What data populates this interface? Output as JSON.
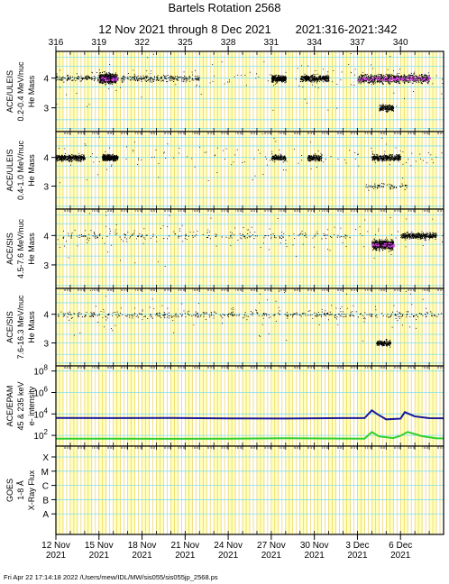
{
  "title": "Bartels Rotation 2568",
  "subtitle_dates": "12 Nov 2021 through 8 Dec 2021",
  "subtitle_doy": "2021:316-2021:342",
  "top_ticks": [
    "316",
    "319",
    "322",
    "325",
    "328",
    "331",
    "334",
    "337",
    "340"
  ],
  "bottom_ticks": [
    {
      "day": "12 Nov",
      "year": "2021"
    },
    {
      "day": "15 Nov",
      "year": "2021"
    },
    {
      "day": "18 Nov",
      "year": "2021"
    },
    {
      "day": "21 Nov",
      "year": "2021"
    },
    {
      "day": "24 Nov",
      "year": "2021"
    },
    {
      "day": "27 Nov",
      "year": "2021"
    },
    {
      "day": "30 Nov",
      "year": "2021"
    },
    {
      "day": "3 Dec",
      "year": "2021"
    },
    {
      "day": "6 Dec",
      "year": "2021"
    }
  ],
  "footer": "Fri Apr 22 17:14:18 2022    /Users/mew/IDL/MW/sis055/sis055jp_2568.ps",
  "colors": {
    "background_stripe": "#ffffc0",
    "vline": "#e8c840",
    "hline": "#80e0f0",
    "points": "#000000",
    "dense": "#d040e0",
    "e_high": "#1a1a9a",
    "e_low": "#30d030"
  },
  "chart_data": [
    {
      "type": "scatter",
      "instrument": "ACE/ULEIS",
      "ylabel": "He Mass",
      "energy": "0.2-0.4 MeV/nuc",
      "yticks": [
        "4",
        "3"
      ],
      "ylim": [
        2.2,
        4.9
      ],
      "xlim": [
        316,
        343
      ],
      "clusters": [
        {
          "x": [
            316.0,
            326.0
          ],
          "y": 4.0,
          "density": "high"
        },
        {
          "x": [
            319.0,
            320.2
          ],
          "y": 4.0,
          "density": "very high"
        },
        {
          "x": [
            331.0,
            332.0
          ],
          "y": 4.0,
          "density": "high"
        },
        {
          "x": [
            333.0,
            335.0
          ],
          "y": 4.0,
          "density": "high"
        },
        {
          "x": [
            337.0,
            342.0
          ],
          "y": 4.0,
          "density": "very high"
        },
        {
          "x": [
            338.5,
            339.5
          ],
          "y": 3.0,
          "density": "medium"
        }
      ]
    },
    {
      "type": "scatter",
      "instrument": "ACE/ULEIS",
      "ylabel": "He Mass",
      "energy": "0.4-1.0 MeV/nuc",
      "yticks": [
        "4",
        "3"
      ],
      "ylim": [
        2.2,
        4.9
      ],
      "xlim": [
        316,
        343
      ],
      "clusters": [
        {
          "x": [
            316.0,
            318.0
          ],
          "y": 4.0,
          "density": "high"
        },
        {
          "x": [
            319.2,
            320.3
          ],
          "y": 4.0,
          "density": "high"
        },
        {
          "x": [
            331.0,
            332.0
          ],
          "y": 4.0,
          "density": "medium"
        },
        {
          "x": [
            333.5,
            334.5
          ],
          "y": 4.0,
          "density": "medium"
        },
        {
          "x": [
            338.0,
            340.0
          ],
          "y": 4.0,
          "density": "high"
        },
        {
          "x": [
            337.5,
            340.5
          ],
          "y": 3.0,
          "density": "low"
        }
      ]
    },
    {
      "type": "scatter",
      "instrument": "ACE/SIS",
      "ylabel": "He Mass",
      "energy": "4.5-7.6 MeV/nuc",
      "yticks": [
        "4",
        "3"
      ],
      "ylim": [
        2.2,
        4.9
      ],
      "xlim": [
        316,
        343
      ],
      "clusters": [
        {
          "x": [
            316.0,
            336.5
          ],
          "y": 4.0,
          "density": "medium"
        },
        {
          "x": [
            338.0,
            339.5
          ],
          "y": 3.7,
          "density": "very high"
        },
        {
          "x": [
            340.0,
            342.5
          ],
          "y": 4.0,
          "density": "high"
        }
      ]
    },
    {
      "type": "scatter",
      "instrument": "ACE/SIS",
      "ylabel": "He Mass",
      "energy": "7.6-16.3 MeV/nuc",
      "yticks": [
        "4",
        "3"
      ],
      "ylim": [
        2.2,
        4.9
      ],
      "xlim": [
        316,
        343
      ],
      "clusters": [
        {
          "x": [
            316.0,
            343.0
          ],
          "y": 4.0,
          "density": "high"
        },
        {
          "x": [
            338.3,
            339.3
          ],
          "y": 3.0,
          "density": "medium"
        }
      ]
    },
    {
      "type": "line",
      "instrument": "ACE/EPAM",
      "ylabel": "e- intensity",
      "energy": "45 & 235 keV",
      "yscale": "log",
      "ylim": [
        10,
        300000000
      ],
      "yticks": [
        "10^8",
        "10^6",
        "10^4",
        "10^2"
      ],
      "xlim": [
        316,
        343
      ],
      "series": [
        {
          "color": "#1a1a9a",
          "x": [
            316,
            320,
            324,
            328,
            332,
            336,
            337.5,
            338,
            338.4,
            339,
            340,
            340.3,
            341,
            342,
            343
          ],
          "values": [
            4000,
            4000,
            4000,
            4000,
            4000,
            4000,
            4000,
            20000,
            9000,
            3000,
            3500,
            15000,
            6000,
            4000,
            4000
          ]
        },
        {
          "color": "#30d030",
          "x": [
            316,
            320,
            324,
            328,
            332,
            336,
            337.5,
            338,
            338.5,
            339.5,
            340,
            340.5,
            341.5,
            342.5,
            343
          ],
          "values": [
            50,
            50,
            50,
            50,
            50,
            50,
            50,
            200,
            80,
            60,
            100,
            200,
            80,
            50,
            50
          ]
        }
      ]
    },
    {
      "type": "line",
      "instrument": "GOES",
      "ylabel": "X-Ray Flux",
      "energy": "1-8 Å",
      "yticks": [
        "X",
        "M",
        "C",
        "B",
        "A"
      ],
      "xlim": [
        316,
        343
      ],
      "series": []
    }
  ]
}
